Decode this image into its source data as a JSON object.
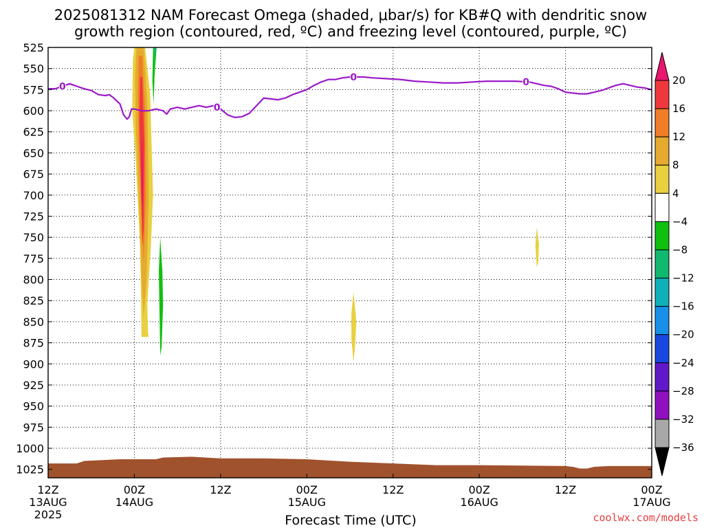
{
  "chart_data": {
    "type": "heatmap",
    "title_line1": "2025081312 NAM Forecast Omega (shaded, μbar/s) for KB#Q with dendritic snow",
    "title_line2": "growth region (contoured, red, ºC) and freezing level (contoured, purple, ºC)",
    "xlabel": "Forecast Time (UTC)",
    "y_axis": {
      "ticks": [
        525,
        550,
        575,
        600,
        625,
        650,
        675,
        700,
        725,
        750,
        775,
        800,
        825,
        850,
        875,
        900,
        925,
        950,
        975,
        1000,
        1025
      ],
      "range": [
        525,
        1035
      ],
      "direction": "pressure increases downward",
      "grid": true
    },
    "x_axis": {
      "range_hours": [
        0,
        84
      ],
      "ticks": [
        {
          "hour": 0,
          "label": "12Z",
          "sub": "13AUG",
          "sub2": "2025"
        },
        {
          "hour": 12,
          "label": "00Z",
          "sub": "14AUG",
          "sub2": ""
        },
        {
          "hour": 24,
          "label": "12Z",
          "sub": "",
          "sub2": ""
        },
        {
          "hour": 36,
          "label": "00Z",
          "sub": "15AUG",
          "sub2": ""
        },
        {
          "hour": 48,
          "label": "12Z",
          "sub": "",
          "sub2": ""
        },
        {
          "hour": 60,
          "label": "00Z",
          "sub": "16AUG",
          "sub2": ""
        },
        {
          "hour": 72,
          "label": "12Z",
          "sub": "",
          "sub2": ""
        },
        {
          "hour": 84,
          "label": "00Z",
          "sub": "17AUG",
          "sub2": ""
        }
      ],
      "grid": true
    },
    "colorbar": {
      "levels": [
        "20",
        "16",
        "12",
        "8",
        "4",
        "−4",
        "−8",
        "−12",
        "−16",
        "−20",
        "−24",
        "−28",
        "−32",
        "−36"
      ],
      "colors": [
        "#e8166e",
        "#f0383c",
        "#f07d28",
        "#e6aa30",
        "#e8d040",
        "#ffffff",
        "#10c010",
        "#10b870",
        "#10b0b8",
        "#1890e8",
        "#1848e0",
        "#6018c8",
        "#9010c0",
        "#a8a8a8",
        "#000000"
      ]
    },
    "freezing_level": {
      "name": "0",
      "color": "#9b18c8",
      "points": [
        [
          0,
          574
        ],
        [
          1,
          574
        ],
        [
          2,
          571
        ],
        [
          3,
          568
        ],
        [
          4,
          571
        ],
        [
          5,
          574
        ],
        [
          6,
          576
        ],
        [
          7,
          581
        ],
        [
          8,
          582
        ],
        [
          8.5,
          581
        ],
        [
          9,
          584
        ],
        [
          10,
          592
        ],
        [
          10.5,
          605
        ],
        [
          11,
          610
        ],
        [
          11.3,
          607
        ],
        [
          11.6,
          598
        ],
        [
          12,
          598
        ],
        [
          13,
          600
        ],
        [
          14,
          600
        ],
        [
          15,
          598
        ],
        [
          16,
          600
        ],
        [
          16.5,
          604
        ],
        [
          17,
          598
        ],
        [
          18,
          596
        ],
        [
          19,
          598
        ],
        [
          20,
          596
        ],
        [
          21,
          594
        ],
        [
          22,
          596
        ],
        [
          23,
          594
        ],
        [
          24,
          598
        ],
        [
          25,
          605
        ],
        [
          26,
          608
        ],
        [
          27,
          607
        ],
        [
          28,
          603
        ],
        [
          29,
          594
        ],
        [
          30,
          585
        ],
        [
          31,
          586
        ],
        [
          32,
          587
        ],
        [
          33,
          585
        ],
        [
          34,
          581
        ],
        [
          35,
          578
        ],
        [
          36,
          575
        ],
        [
          37,
          570
        ],
        [
          38,
          566
        ],
        [
          39,
          563
        ],
        [
          40,
          563
        ],
        [
          41,
          561
        ],
        [
          42,
          560
        ],
        [
          43,
          560
        ],
        [
          44,
          560
        ],
        [
          45,
          561
        ],
        [
          47,
          562
        ],
        [
          49,
          563
        ],
        [
          51,
          565
        ],
        [
          53,
          566
        ],
        [
          55,
          567
        ],
        [
          57,
          567
        ],
        [
          59,
          566
        ],
        [
          61,
          565
        ],
        [
          63,
          565
        ],
        [
          65,
          565
        ],
        [
          67,
          566
        ],
        [
          68,
          568
        ],
        [
          69,
          570
        ],
        [
          70,
          571
        ],
        [
          71,
          574
        ],
        [
          72,
          578
        ],
        [
          73,
          579
        ],
        [
          74,
          580
        ],
        [
          75,
          580
        ],
        [
          76,
          578
        ],
        [
          77,
          576
        ],
        [
          78,
          573
        ],
        [
          79,
          570
        ],
        [
          80,
          568
        ],
        [
          81,
          570
        ],
        [
          82,
          572
        ],
        [
          83,
          573
        ],
        [
          84,
          575
        ]
      ],
      "contour_label_hours": [
        2,
        23.5,
        42.5,
        66.5
      ]
    },
    "omega_regions": [
      {
        "level": "4 to 8",
        "color": "#e8d040",
        "outline": [
          [
            12.0,
            525
          ],
          [
            13.5,
            525
          ],
          [
            14.2,
            580
          ],
          [
            14.6,
            700
          ],
          [
            14.3,
            760
          ],
          [
            13.8,
            830
          ],
          [
            13.9,
            862
          ],
          [
            14.0,
            868
          ],
          [
            13.0,
            868
          ],
          [
            12.8,
            760
          ],
          [
            12.2,
            660
          ],
          [
            11.7,
            600
          ],
          [
            11.8,
            540
          ]
        ]
      },
      {
        "level": "8 to 12",
        "color": "#e6aa30",
        "outline": [
          [
            12.3,
            525
          ],
          [
            13.3,
            525
          ],
          [
            13.8,
            590
          ],
          [
            14.0,
            700
          ],
          [
            13.7,
            800
          ],
          [
            13.3,
            845
          ],
          [
            13.0,
            800
          ],
          [
            12.6,
            700
          ],
          [
            12.2,
            620
          ],
          [
            12.1,
            560
          ]
        ]
      },
      {
        "level": "12 to 16",
        "color": "#f07d28",
        "outline": [
          [
            12.6,
            535
          ],
          [
            13.1,
            535
          ],
          [
            13.5,
            600
          ],
          [
            13.6,
            700
          ],
          [
            13.3,
            780
          ],
          [
            13.0,
            720
          ],
          [
            12.6,
            640
          ],
          [
            12.5,
            580
          ]
        ]
      },
      {
        "level": "16 to 20",
        "color": "#f0383c",
        "outline": [
          [
            12.8,
            560
          ],
          [
            13.1,
            560
          ],
          [
            13.4,
            640
          ],
          [
            13.3,
            740
          ],
          [
            13.1,
            760
          ],
          [
            12.9,
            680
          ],
          [
            12.7,
            610
          ]
        ]
      },
      {
        "level": "> 20",
        "color": "#e8166e",
        "outline": [
          [
            13.0,
            630
          ],
          [
            13.2,
            660
          ],
          [
            13.2,
            700
          ],
          [
            13.1,
            720
          ],
          [
            13.0,
            690
          ]
        ]
      },
      {
        "level": "-4 to -8",
        "color": "#10c010",
        "outline": [
          [
            14.6,
            525
          ],
          [
            15.1,
            525
          ],
          [
            14.8,
            560
          ],
          [
            14.7,
            592
          ],
          [
            14.5,
            565
          ]
        ]
      },
      {
        "level": "-8 to -12",
        "color": "#10b870",
        "outline": [
          [
            14.7,
            525
          ],
          [
            15.0,
            525
          ],
          [
            14.8,
            545
          ]
        ]
      },
      {
        "level": "-4 to -8",
        "color": "#10c010",
        "outline": [
          [
            15.6,
            750
          ],
          [
            15.9,
            790
          ],
          [
            16.0,
            830
          ],
          [
            15.8,
            880
          ],
          [
            15.6,
            890
          ],
          [
            15.5,
            840
          ],
          [
            15.4,
            790
          ]
        ]
      },
      {
        "level": "4 to 8",
        "color": "#e8d040",
        "outline": [
          [
            42.5,
            815
          ],
          [
            42.9,
            850
          ],
          [
            42.7,
            880
          ],
          [
            42.5,
            898
          ],
          [
            42.2,
            870
          ],
          [
            42.2,
            840
          ]
        ]
      },
      {
        "level": "4 to 8",
        "color": "#e8d040",
        "outline": [
          [
            68.0,
            738
          ],
          [
            68.3,
            758
          ],
          [
            68.2,
            780
          ],
          [
            68.0,
            785
          ],
          [
            67.8,
            760
          ]
        ]
      }
    ],
    "terrain": {
      "color": "#a0522d",
      "points": [
        [
          0,
          1018
        ],
        [
          4,
          1018
        ],
        [
          5,
          1015
        ],
        [
          10,
          1013
        ],
        [
          15,
          1013
        ],
        [
          16,
          1011
        ],
        [
          20,
          1010
        ],
        [
          24,
          1012
        ],
        [
          30,
          1012
        ],
        [
          36,
          1013
        ],
        [
          42,
          1016
        ],
        [
          48,
          1018
        ],
        [
          54,
          1020
        ],
        [
          60,
          1020
        ],
        [
          72,
          1021
        ],
        [
          73,
          1022
        ],
        [
          74,
          1024
        ],
        [
          75,
          1024
        ],
        [
          76,
          1022
        ],
        [
          78,
          1021
        ],
        [
          84,
          1021
        ]
      ]
    }
  },
  "credit": "coolwx.com/models"
}
